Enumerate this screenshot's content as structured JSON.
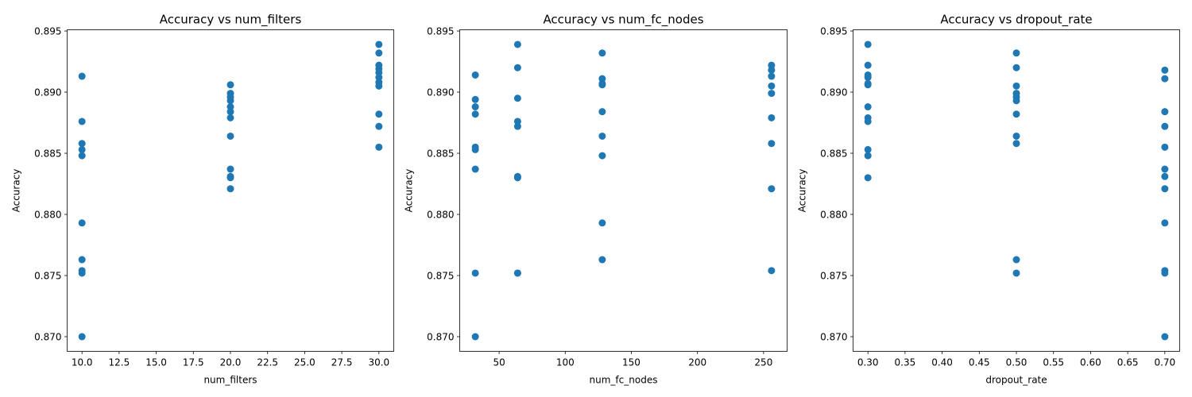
{
  "chart_data": [
    {
      "type": "scatter",
      "title": "Accuracy vs num_filters",
      "xlabel": "num_filters",
      "ylabel": "Accuracy",
      "xlim": [
        9.0,
        31.0
      ],
      "ylim": [
        0.8688,
        0.8951
      ],
      "xticks": [
        10.0,
        12.5,
        15.0,
        17.5,
        20.0,
        22.5,
        25.0,
        27.5,
        30.0
      ],
      "xtick_labels": [
        "10.0",
        "12.5",
        "15.0",
        "17.5",
        "20.0",
        "22.5",
        "25.0",
        "27.5",
        "30.0"
      ],
      "yticks": [
        0.87,
        0.875,
        0.88,
        0.885,
        0.89,
        0.895
      ],
      "ytick_labels": [
        "0.870",
        "0.875",
        "0.880",
        "0.885",
        "0.890",
        "0.895"
      ],
      "color": "#1f77b4",
      "points": [
        [
          10,
          0.8913
        ],
        [
          10,
          0.8876
        ],
        [
          10,
          0.8858
        ],
        [
          10,
          0.8853
        ],
        [
          10,
          0.8848
        ],
        [
          10,
          0.8793
        ],
        [
          10,
          0.8763
        ],
        [
          10,
          0.8754
        ],
        [
          10,
          0.8752
        ],
        [
          10,
          0.87
        ],
        [
          20,
          0.8906
        ],
        [
          20,
          0.8899
        ],
        [
          20,
          0.8896
        ],
        [
          20,
          0.8893
        ],
        [
          20,
          0.8888
        ],
        [
          20,
          0.8884
        ],
        [
          20,
          0.8879
        ],
        [
          20,
          0.8864
        ],
        [
          20,
          0.8837
        ],
        [
          20,
          0.8831
        ],
        [
          20,
          0.883
        ],
        [
          20,
          0.8821
        ],
        [
          30,
          0.8939
        ],
        [
          30,
          0.8932
        ],
        [
          30,
          0.8922
        ],
        [
          30,
          0.8919
        ],
        [
          30,
          0.8916
        ],
        [
          30,
          0.8912
        ],
        [
          30,
          0.8908
        ],
        [
          30,
          0.8905
        ],
        [
          30,
          0.8882
        ],
        [
          30,
          0.8872
        ],
        [
          30,
          0.8855
        ]
      ]
    },
    {
      "type": "scatter",
      "title": "Accuracy vs num_fc_nodes",
      "xlabel": "num_fc_nodes",
      "ylabel": "Accuracy",
      "xlim": [
        20.2,
        267.8
      ],
      "ylim": [
        0.8688,
        0.8951
      ],
      "xticks": [
        50,
        100,
        150,
        200,
        250
      ],
      "xtick_labels": [
        "50",
        "100",
        "150",
        "200",
        "250"
      ],
      "yticks": [
        0.87,
        0.875,
        0.88,
        0.885,
        0.89,
        0.895
      ],
      "ytick_labels": [
        "0.870",
        "0.875",
        "0.880",
        "0.885",
        "0.890",
        "0.895"
      ],
      "color": "#1f77b4",
      "points": [
        [
          32,
          0.8914
        ],
        [
          32,
          0.8894
        ],
        [
          32,
          0.8888
        ],
        [
          32,
          0.8882
        ],
        [
          32,
          0.8855
        ],
        [
          32,
          0.8853
        ],
        [
          32,
          0.8837
        ],
        [
          32,
          0.8752
        ],
        [
          32,
          0.87
        ],
        [
          64,
          0.8939
        ],
        [
          64,
          0.892
        ],
        [
          64,
          0.8895
        ],
        [
          64,
          0.8876
        ],
        [
          64,
          0.8872
        ],
        [
          64,
          0.8831
        ],
        [
          64,
          0.883
        ],
        [
          64,
          0.8752
        ],
        [
          64,
          0.8752
        ],
        [
          128,
          0.8932
        ],
        [
          128,
          0.8911
        ],
        [
          128,
          0.8907
        ],
        [
          128,
          0.8906
        ],
        [
          128,
          0.8884
        ],
        [
          128,
          0.8864
        ],
        [
          128,
          0.8848
        ],
        [
          128,
          0.8793
        ],
        [
          128,
          0.8763
        ],
        [
          256,
          0.8922
        ],
        [
          256,
          0.8918
        ],
        [
          256,
          0.8913
        ],
        [
          256,
          0.8905
        ],
        [
          256,
          0.8899
        ],
        [
          256,
          0.8879
        ],
        [
          256,
          0.8858
        ],
        [
          256,
          0.8821
        ],
        [
          256,
          0.8754
        ]
      ]
    },
    {
      "type": "scatter",
      "title": "Accuracy vs dropout_rate",
      "xlabel": "dropout_rate",
      "ylabel": "Accuracy",
      "xlim": [
        0.28,
        0.72
      ],
      "ylim": [
        0.8688,
        0.8951
      ],
      "xticks": [
        0.3,
        0.35,
        0.4,
        0.45,
        0.5,
        0.55,
        0.6,
        0.65,
        0.7
      ],
      "xtick_labels": [
        "0.30",
        "0.35",
        "0.40",
        "0.45",
        "0.50",
        "0.55",
        "0.60",
        "0.65",
        "0.70"
      ],
      "yticks": [
        0.87,
        0.875,
        0.88,
        0.885,
        0.89,
        0.895
      ],
      "ytick_labels": [
        "0.870",
        "0.875",
        "0.880",
        "0.885",
        "0.890",
        "0.895"
      ],
      "color": "#1f77b4",
      "points": [
        [
          0.3,
          0.8939
        ],
        [
          0.3,
          0.8922
        ],
        [
          0.3,
          0.8914
        ],
        [
          0.3,
          0.8912
        ],
        [
          0.3,
          0.8907
        ],
        [
          0.3,
          0.8906
        ],
        [
          0.3,
          0.8888
        ],
        [
          0.3,
          0.8879
        ],
        [
          0.3,
          0.8876
        ],
        [
          0.3,
          0.8853
        ],
        [
          0.3,
          0.8848
        ],
        [
          0.3,
          0.883
        ],
        [
          0.5,
          0.8932
        ],
        [
          0.5,
          0.892
        ],
        [
          0.5,
          0.8905
        ],
        [
          0.5,
          0.8899
        ],
        [
          0.5,
          0.8896
        ],
        [
          0.5,
          0.8893
        ],
        [
          0.5,
          0.8882
        ],
        [
          0.5,
          0.8864
        ],
        [
          0.5,
          0.8858
        ],
        [
          0.5,
          0.8763
        ],
        [
          0.5,
          0.8752
        ],
        [
          0.7,
          0.8918
        ],
        [
          0.7,
          0.8911
        ],
        [
          0.7,
          0.8884
        ],
        [
          0.7,
          0.8872
        ],
        [
          0.7,
          0.8855
        ],
        [
          0.7,
          0.8837
        ],
        [
          0.7,
          0.8831
        ],
        [
          0.7,
          0.8821
        ],
        [
          0.7,
          0.8793
        ],
        [
          0.7,
          0.8754
        ],
        [
          0.7,
          0.8752
        ],
        [
          0.7,
          0.87
        ]
      ]
    }
  ]
}
